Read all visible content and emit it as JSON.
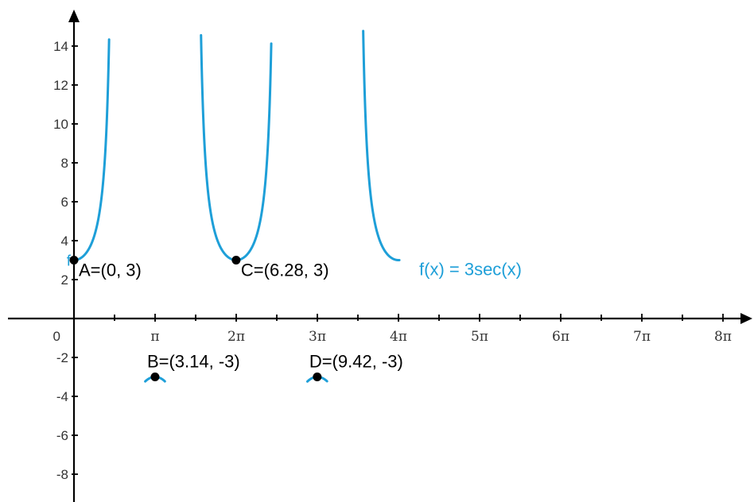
{
  "chart_data": {
    "type": "line",
    "title": "",
    "xlabel": "",
    "ylabel": "",
    "xlim": [
      0,
      29.5
    ],
    "ylim": [
      -9,
      15.5
    ],
    "grid": false,
    "x_ticks": [
      {
        "value": 3.14159,
        "label": "π"
      },
      {
        "value": 6.28319,
        "label": "2π"
      },
      {
        "value": 9.42478,
        "label": "3π"
      },
      {
        "value": 12.56637,
        "label": "4π"
      },
      {
        "value": 15.70796,
        "label": "5π"
      },
      {
        "value": 18.84956,
        "label": "6π"
      },
      {
        "value": 21.99115,
        "label": "7π"
      },
      {
        "value": 25.13274,
        "label": "8π"
      }
    ],
    "origin_label": "0",
    "y_ticks": [
      {
        "value": 14,
        "label": "14"
      },
      {
        "value": 12,
        "label": "12"
      },
      {
        "value": 10,
        "label": "10"
      },
      {
        "value": 8,
        "label": "8"
      },
      {
        "value": 6,
        "label": "6"
      },
      {
        "value": 4,
        "label": "4"
      },
      {
        "value": 2,
        "label": "2"
      },
      {
        "value": -2,
        "label": "-2"
      },
      {
        "value": -4,
        "label": "-4"
      },
      {
        "value": -6,
        "label": "-6"
      },
      {
        "value": -8,
        "label": "-8"
      }
    ],
    "series": [
      {
        "name": "f",
        "expression": "f(x) = 3sec(x)",
        "color": "#1e9fd8",
        "branches": [
          {
            "x_start": 0,
            "x_end": 1.36
          },
          {
            "x_start": 4.92,
            "x_end": 7.64
          },
          {
            "x_start": 2.76,
            "x_end": 3.52
          },
          {
            "x_start": 9.04,
            "x_end": 9.8
          },
          {
            "x_start": 11.2,
            "x_end": 12.6
          }
        ]
      }
    ],
    "points": [
      {
        "id": "A",
        "x": 0,
        "y": 3,
        "label": "A=(0, 3)"
      },
      {
        "id": "B",
        "x": 3.14,
        "y": -3,
        "label": "B=(3.14, -3)"
      },
      {
        "id": "C",
        "x": 6.28,
        "y": 3,
        "label": "C=(6.28, 3)"
      },
      {
        "id": "D",
        "x": 9.42,
        "y": -3,
        "label": "D=(9.42, -3)"
      }
    ]
  }
}
